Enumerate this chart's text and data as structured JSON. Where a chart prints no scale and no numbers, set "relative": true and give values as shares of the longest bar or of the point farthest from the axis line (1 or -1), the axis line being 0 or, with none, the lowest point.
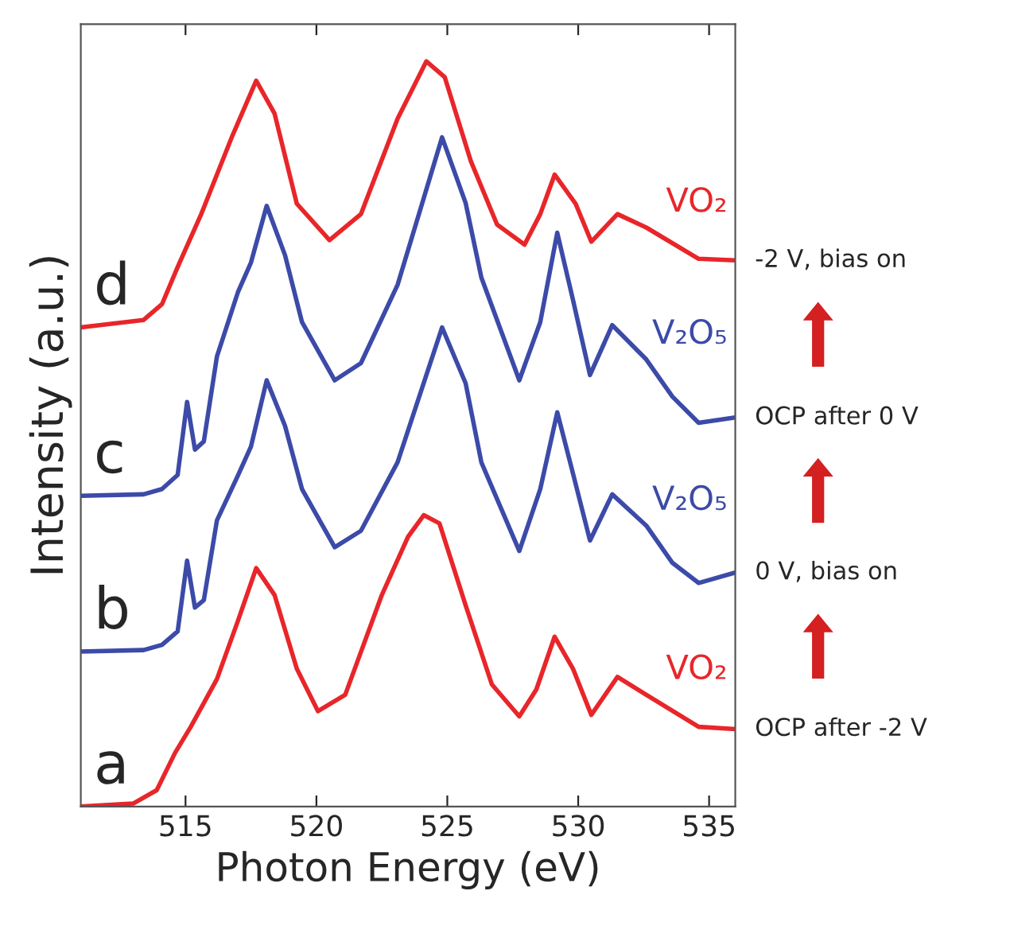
{
  "chart_data": {
    "type": "line",
    "relative": true,
    "xlabel": "Photon Energy (eV)",
    "ylabel": "Intensity (a.u.)",
    "xlim": [
      511,
      536
    ],
    "xticks": [
      515,
      520,
      525,
      530,
      535
    ],
    "grid": false,
    "legend": false,
    "series": [
      {
        "name": "VO₂",
        "color": "#e8262a",
        "x": [
          511.0,
          513.4,
          514.1,
          514.7,
          515.6,
          516.8,
          517.7,
          518.4,
          519.25,
          520.5,
          521.7,
          523.1,
          524.2,
          524.9,
          525.9,
          526.9,
          527.95,
          528.55,
          529.1,
          529.9,
          530.5,
          531.5,
          532.6,
          534.6,
          536.0
        ],
        "values": [
          0.643,
          0.653,
          0.674,
          0.724,
          0.795,
          0.901,
          0.974,
          0.93,
          0.809,
          0.76,
          0.795,
          0.923,
          1.0,
          0.979,
          0.866,
          0.781,
          0.754,
          0.795,
          0.848,
          0.809,
          0.758,
          0.795,
          0.777,
          0.735,
          0.733
        ]
      },
      {
        "name": "V₂O₅",
        "color": "#3c4aa8",
        "x": [
          511.0,
          513.4,
          514.1,
          514.7,
          515.06,
          515.36,
          515.7,
          516.2,
          517.0,
          517.5,
          518.1,
          518.8,
          519.45,
          520.7,
          521.7,
          523.1,
          524.8,
          525.7,
          526.3,
          527.75,
          528.55,
          529.2,
          529.8,
          530.45,
          531.3,
          532.6,
          533.6,
          534.6,
          536.0
        ],
        "values": [
          0.417,
          0.419,
          0.426,
          0.445,
          0.543,
          0.479,
          0.49,
          0.604,
          0.69,
          0.73,
          0.806,
          0.74,
          0.65,
          0.572,
          0.595,
          0.7,
          0.898,
          0.81,
          0.71,
          0.572,
          0.65,
          0.77,
          0.68,
          0.579,
          0.646,
          0.6,
          0.55,
          0.515,
          0.522
        ]
      },
      {
        "name": "V₂O₅",
        "color": "#3c4aa8",
        "x": [
          511.0,
          513.4,
          514.1,
          514.7,
          515.06,
          515.36,
          515.7,
          516.2,
          517.0,
          517.5,
          518.1,
          518.8,
          519.45,
          520.7,
          521.7,
          523.1,
          524.8,
          525.7,
          526.3,
          527.75,
          528.55,
          529.2,
          529.8,
          530.45,
          531.3,
          532.6,
          533.6,
          534.6,
          536.0
        ],
        "values": [
          0.208,
          0.21,
          0.217,
          0.235,
          0.33,
          0.267,
          0.277,
          0.384,
          0.444,
          0.483,
          0.572,
          0.511,
          0.426,
          0.348,
          0.37,
          0.462,
          0.643,
          0.568,
          0.462,
          0.343,
          0.426,
          0.529,
          0.447,
          0.357,
          0.419,
          0.377,
          0.327,
          0.3,
          0.314
        ]
      },
      {
        "name": "VO₂",
        "color": "#e8262a",
        "x": [
          511.0,
          513.0,
          513.9,
          514.6,
          515.2,
          516.2,
          517.0,
          517.7,
          518.4,
          519.25,
          520.06,
          521.1,
          522.5,
          523.5,
          524.1,
          524.7,
          525.7,
          526.7,
          527.75,
          528.4,
          529.1,
          529.8,
          530.5,
          531.5,
          532.6,
          534.6,
          536.0
        ],
        "values": [
          0.0,
          0.004,
          0.022,
          0.072,
          0.107,
          0.171,
          0.249,
          0.32,
          0.284,
          0.185,
          0.128,
          0.15,
          0.284,
          0.362,
          0.391,
          0.38,
          0.27,
          0.164,
          0.121,
          0.157,
          0.228,
          0.185,
          0.123,
          0.174,
          0.15,
          0.107,
          0.104
        ]
      }
    ],
    "annotations": [
      "d",
      "c",
      "b",
      "a",
      "-2 V, bias on",
      "OCP after 0 V",
      "0 V, bias on",
      "OCP after -2 V"
    ]
  }
}
